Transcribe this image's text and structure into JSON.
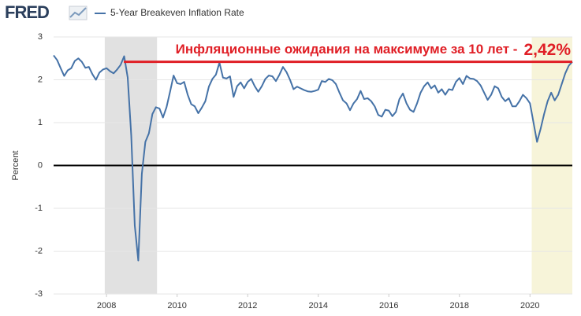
{
  "chart_data": {
    "type": "line",
    "source_logo": "FRED",
    "y_label": "Percent",
    "annotation": "Инфляционные ожидания на максимуме за 10 лет -",
    "reference_line": {
      "value": 2.42,
      "label": "2,42%",
      "x_start": 2008.49,
      "color": "#e01f26"
    },
    "shaded": [
      {
        "start": 2007.95,
        "end": 2009.43,
        "color": "#e1e1e1"
      },
      {
        "start": 2020.05,
        "end": 2021.2,
        "color": "#f7f4d9"
      }
    ],
    "xlim": [
      2006.5,
      2021.2
    ],
    "ylim": [
      -3,
      3
    ],
    "xticks": [
      2008,
      2010,
      2012,
      2014,
      2016,
      2018,
      2020
    ],
    "yticks": [
      -3,
      -2,
      -1,
      0,
      1,
      2,
      3
    ],
    "grid": true,
    "zero_line": true,
    "x": [
      2006.5,
      2006.6,
      2006.7,
      2006.8,
      2006.9,
      2007,
      2007.1,
      2007.2,
      2007.3,
      2007.4,
      2007.5,
      2007.6,
      2007.7,
      2007.8,
      2007.9,
      2008,
      2008.1,
      2008.2,
      2008.3,
      2008.4,
      2008.5,
      2008.6,
      2008.7,
      2008.8,
      2008.9,
      2009,
      2009.1,
      2009.2,
      2009.3,
      2009.4,
      2009.5,
      2009.6,
      2009.7,
      2009.8,
      2009.9,
      2010,
      2010.1,
      2010.2,
      2010.3,
      2010.4,
      2010.5,
      2010.6,
      2010.7,
      2010.8,
      2010.9,
      2011,
      2011.1,
      2011.2,
      2011.3,
      2011.4,
      2011.5,
      2011.6,
      2011.7,
      2011.8,
      2011.9,
      2012,
      2012.1,
      2012.2,
      2012.3,
      2012.4,
      2012.5,
      2012.6,
      2012.7,
      2012.8,
      2012.9,
      2013,
      2013.1,
      2013.2,
      2013.3,
      2013.4,
      2013.5,
      2013.6,
      2013.7,
      2013.8,
      2013.9,
      2014,
      2014.1,
      2014.2,
      2014.3,
      2014.4,
      2014.5,
      2014.6,
      2014.7,
      2014.8,
      2014.9,
      2015,
      2015.1,
      2015.2,
      2015.3,
      2015.4,
      2015.5,
      2015.6,
      2015.7,
      2015.8,
      2015.9,
      2016,
      2016.1,
      2016.2,
      2016.3,
      2016.4,
      2016.5,
      2016.6,
      2016.7,
      2016.8,
      2016.9,
      2017,
      2017.1,
      2017.2,
      2017.3,
      2017.4,
      2017.5,
      2017.6,
      2017.7,
      2017.8,
      2017.9,
      2018,
      2018.1,
      2018.2,
      2018.3,
      2018.4,
      2018.5,
      2018.6,
      2018.7,
      2018.8,
      2018.9,
      2019,
      2019.1,
      2019.2,
      2019.3,
      2019.4,
      2019.5,
      2019.6,
      2019.7,
      2019.8,
      2019.9,
      2020,
      2020.1,
      2020.2,
      2020.3,
      2020.4,
      2020.5,
      2020.6,
      2020.7,
      2020.8,
      2020.9,
      2021,
      2021.1,
      2021.2
    ],
    "series": [
      {
        "name": "5-Year Breakeven Inflation Rate",
        "color": "#4572a7",
        "values": [
          2.57,
          2.46,
          2.27,
          2.09,
          2.22,
          2.27,
          2.44,
          2.5,
          2.42,
          2.28,
          2.3,
          2.13,
          2.0,
          2.17,
          2.24,
          2.27,
          2.2,
          2.15,
          2.24,
          2.35,
          2.55,
          2.05,
          0.7,
          -1.4,
          -2.22,
          -0.2,
          0.55,
          0.75,
          1.2,
          1.36,
          1.33,
          1.12,
          1.36,
          1.72,
          2.1,
          1.92,
          1.9,
          1.95,
          1.65,
          1.43,
          1.38,
          1.22,
          1.35,
          1.5,
          1.84,
          2.02,
          2.12,
          2.4,
          2.05,
          2.03,
          2.08,
          1.6,
          1.85,
          1.94,
          1.8,
          1.95,
          2.02,
          1.85,
          1.72,
          1.85,
          2.02,
          2.1,
          2.08,
          1.97,
          2.12,
          2.3,
          2.18,
          2.0,
          1.78,
          1.84,
          1.8,
          1.76,
          1.73,
          1.72,
          1.74,
          1.77,
          1.97,
          1.95,
          2.02,
          1.99,
          1.9,
          1.7,
          1.52,
          1.45,
          1.29,
          1.45,
          1.55,
          1.74,
          1.55,
          1.57,
          1.5,
          1.38,
          1.18,
          1.14,
          1.3,
          1.28,
          1.15,
          1.25,
          1.55,
          1.68,
          1.45,
          1.3,
          1.25,
          1.45,
          1.7,
          1.85,
          1.94,
          1.8,
          1.87,
          1.7,
          1.78,
          1.65,
          1.78,
          1.76,
          1.95,
          2.04,
          1.9,
          2.09,
          2.03,
          2.02,
          1.97,
          1.87,
          1.7,
          1.53,
          1.65,
          1.85,
          1.8,
          1.6,
          1.5,
          1.57,
          1.38,
          1.38,
          1.5,
          1.65,
          1.57,
          1.45,
          1.0,
          0.55,
          0.85,
          1.2,
          1.5,
          1.7,
          1.52,
          1.65,
          1.9,
          2.15,
          2.33,
          2.42
        ]
      }
    ]
  }
}
